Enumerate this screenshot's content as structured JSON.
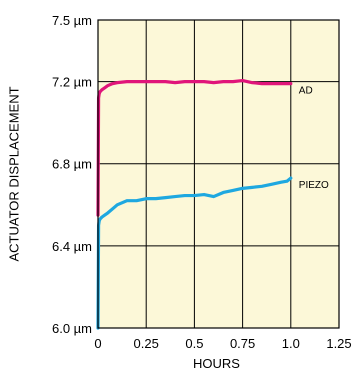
{
  "chart_data": {
    "type": "line",
    "title": "",
    "xlabel": "HOURS",
    "ylabel": "ACTUATOR DISPLACEMENT",
    "xlim": [
      0,
      1.25
    ],
    "ylim": [
      6.0,
      7.5
    ],
    "x_ticks": [
      0,
      0.25,
      0.5,
      0.75,
      1.0,
      1.25
    ],
    "x_tick_labels": [
      "0",
      "0.25",
      "0.5",
      "0.75",
      "1.0",
      "1.25"
    ],
    "y_ticks": [
      6.0,
      6.4,
      6.8,
      7.2,
      7.5
    ],
    "y_tick_labels": [
      "6.0 µm",
      "6.4 µm",
      "6.8 µm",
      "7.2 µm",
      "7.5 µm"
    ],
    "grid": true,
    "plot_background": "#fcf8d8",
    "series": [
      {
        "name": "AD",
        "color": "#e0157a",
        "x": [
          0,
          0.003,
          0.006,
          0.01,
          0.02,
          0.035,
          0.05,
          0.075,
          0.1,
          0.15,
          0.2,
          0.25,
          0.3,
          0.35,
          0.4,
          0.45,
          0.5,
          0.55,
          0.6,
          0.65,
          0.7,
          0.75,
          0.8,
          0.85,
          0.9,
          0.95,
          1.0
        ],
        "values": [
          6.55,
          7.12,
          7.14,
          7.15,
          7.16,
          7.17,
          7.18,
          7.19,
          7.195,
          7.2,
          7.2,
          7.2,
          7.2,
          7.2,
          7.195,
          7.2,
          7.2,
          7.2,
          7.195,
          7.2,
          7.2,
          7.205,
          7.195,
          7.19,
          7.19,
          7.19,
          7.19
        ]
      },
      {
        "name": "PIEZO",
        "color": "#1ea8e0",
        "x": [
          0,
          0.003,
          0.006,
          0.01,
          0.02,
          0.035,
          0.05,
          0.075,
          0.1,
          0.15,
          0.2,
          0.25,
          0.3,
          0.35,
          0.4,
          0.45,
          0.5,
          0.55,
          0.6,
          0.65,
          0.7,
          0.75,
          0.8,
          0.85,
          0.9,
          0.95,
          0.98,
          1.0
        ],
        "values": [
          6.0,
          6.5,
          6.52,
          6.53,
          6.54,
          6.55,
          6.56,
          6.58,
          6.6,
          6.62,
          6.62,
          6.63,
          6.63,
          6.635,
          6.64,
          6.645,
          6.645,
          6.65,
          6.64,
          6.66,
          6.67,
          6.68,
          6.685,
          6.69,
          6.7,
          6.71,
          6.715,
          6.73
        ]
      }
    ]
  }
}
